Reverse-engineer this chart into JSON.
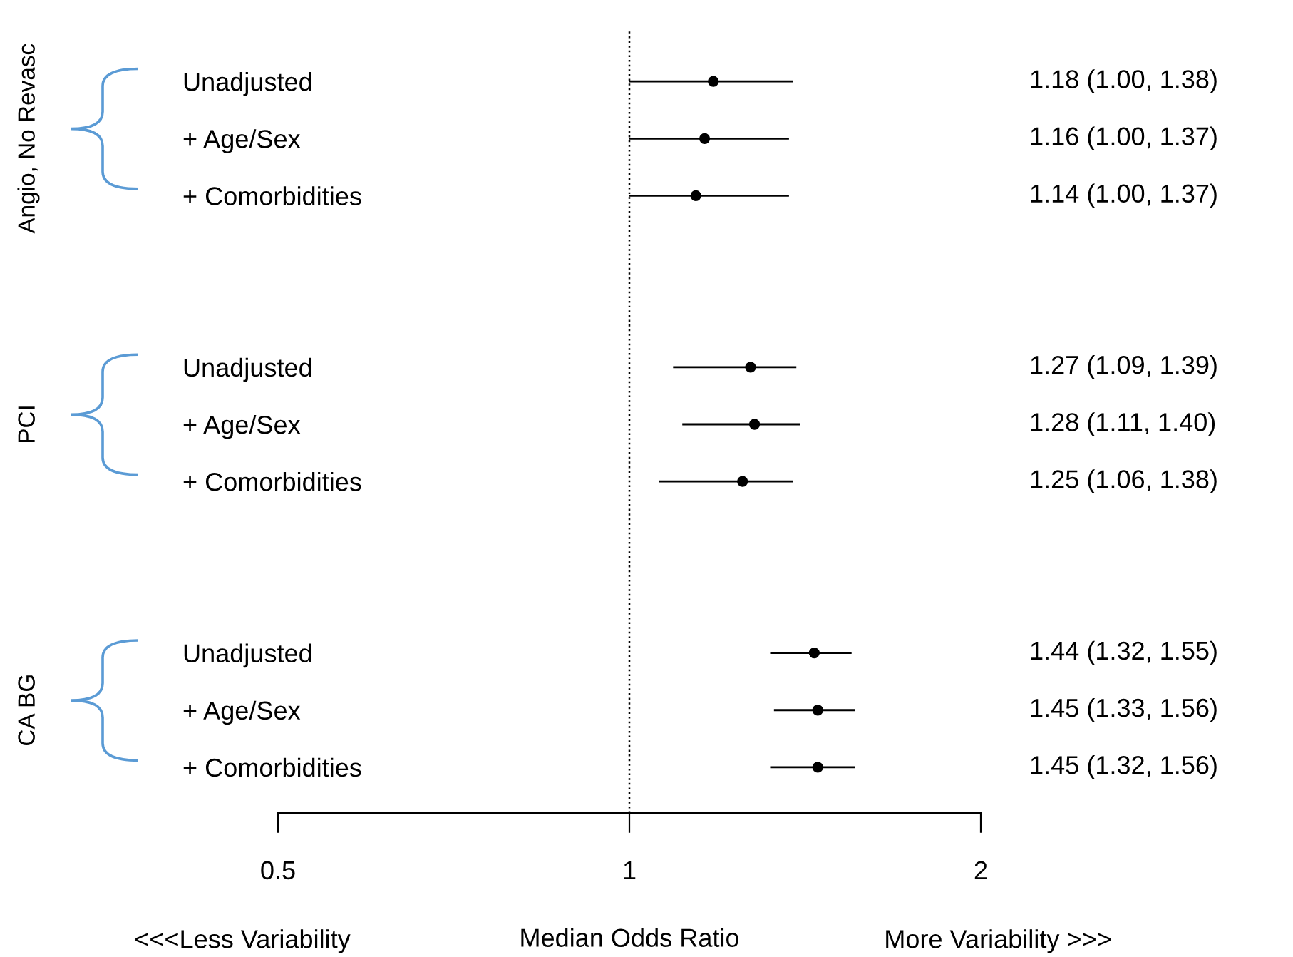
{
  "chart_data": {
    "type": "scatter",
    "orientation": "horizontal",
    "log": "x",
    "marker": "circle",
    "color": "#000000",
    "grid": false,
    "categories": [
      "Unadjusted",
      "+ Age/Sex",
      "+ Comorbidities",
      null,
      null,
      "Unadjusted",
      "+ Age/Sex",
      "+ Comorbidities",
      null,
      null,
      "Unadjusted",
      "+ Age/Sex",
      "+ Comorbidities"
    ],
    "values": [
      1.18,
      1.16,
      1.14,
      null,
      null,
      1.27,
      1.28,
      1.25,
      null,
      null,
      1.44,
      1.45,
      1.45
    ],
    "errors": [
      [
        1.0,
        1.38
      ],
      [
        1.0,
        1.37
      ],
      [
        1.0,
        1.37
      ],
      null,
      null,
      [
        1.09,
        1.39
      ],
      [
        1.11,
        1.4
      ],
      [
        1.06,
        1.38
      ],
      null,
      null,
      [
        1.32,
        1.55
      ],
      [
        1.33,
        1.56
      ],
      [
        1.32,
        1.56
      ]
    ],
    "value_labels": [
      "1.18 (1.00, 1.38)",
      "1.16 (1.00, 1.37)",
      "1.14 (1.00, 1.37)",
      null,
      null,
      "1.27 (1.09, 1.39)",
      "1.28 (1.11, 1.40)",
      "1.25 (1.06, 1.38)",
      null,
      null,
      "1.44 (1.32, 1.55)",
      "1.45 (1.33, 1.56)",
      "1.45 (1.32, 1.56)"
    ],
    "xlim": [
      0.5,
      2
    ],
    "xticks": [
      0.5,
      1,
      2
    ],
    "xlabel": "Median Odds Ratio",
    "ref_lines": [
      {
        "axis": "x",
        "value": 1,
        "color": "#000000",
        "line_style": "dotted"
      }
    ],
    "annotations": [
      "Angio, No Revasc",
      "PCI",
      "CA BG",
      "<<<Less Variability",
      "More Variability >>>"
    ]
  }
}
